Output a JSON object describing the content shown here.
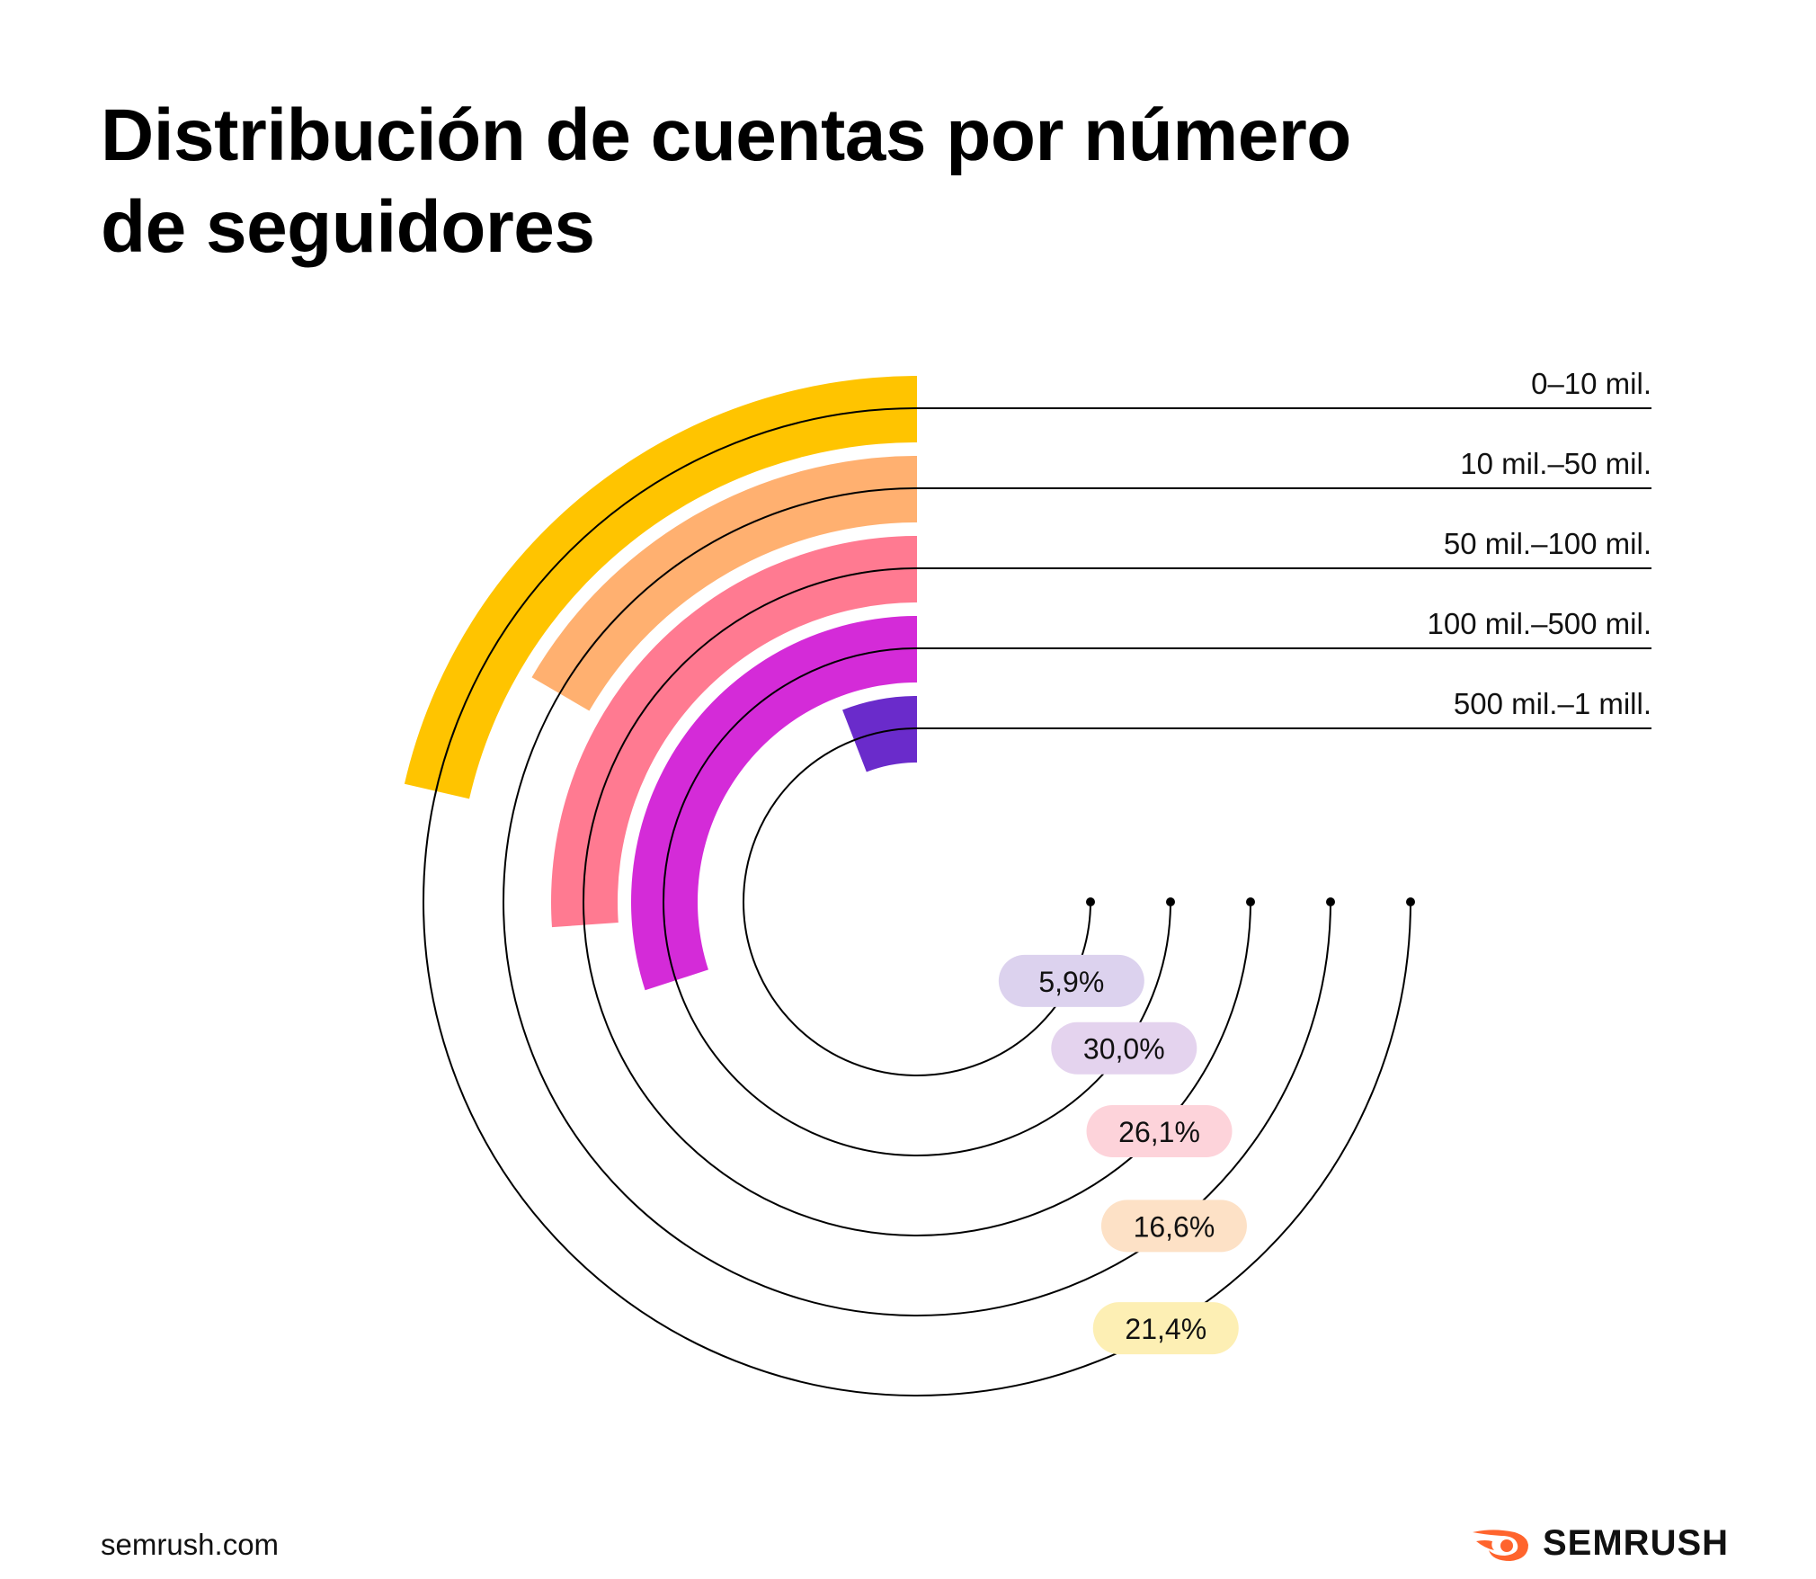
{
  "title": "Distribución de cuentas por número de seguidores",
  "footer": {
    "url": "semrush.com",
    "logo_text": "SEMRUSH"
  },
  "colors": {
    "logo_orange": "#ff642d",
    "text": "#111111",
    "line": "#000000"
  },
  "chart_data": {
    "type": "radial-bar",
    "title": "Distribución de cuentas por número de seguidores",
    "unit": "%",
    "categories": [
      "0–10 mil.",
      "10 mil.–50 mil.",
      "50 mil.–100 mil.",
      "100 mil.–500 mil.",
      "500 mil.–1 mill."
    ],
    "values": [
      21.4,
      16.6,
      26.1,
      30.0,
      5.9
    ],
    "value_labels": [
      "21,4%",
      "16,6%",
      "26,1%",
      "30,0%",
      "5,9%"
    ],
    "colors": [
      "#ffc400",
      "#ffb070",
      "#ff7a91",
      "#d42bd8",
      "#6a2bcb"
    ],
    "label_bg_colors": [
      "#fdefb4",
      "#fde1c6",
      "#fdd3da",
      "#e4d3ee",
      "#dcd2ee"
    ],
    "max_value": 100
  }
}
